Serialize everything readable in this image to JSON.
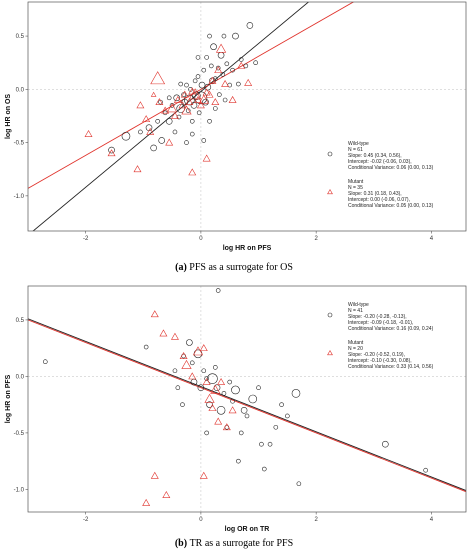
{
  "colors": {
    "wild": "#222222",
    "mutant": "#e0322b",
    "grid": "#cccccc",
    "frame": "#555555",
    "background": "#ffffff"
  },
  "chart_data": [
    {
      "type": "scatter",
      "title": "",
      "xlabel": "log HR on PFS",
      "ylabel": "log HR on OS",
      "xlim": [
        -3.0,
        4.6
      ],
      "ylim": [
        -1.33,
        0.82
      ],
      "xticks": [
        -2,
        0,
        2,
        4
      ],
      "yticks": [
        0.5,
        0.0,
        -0.5,
        -1.0
      ],
      "grid": false,
      "reference_lines": [
        0,
        0
      ],
      "legend_position": "right",
      "caption": {
        "letter": "(a)",
        "text": "PFS as a surrogate for OS"
      },
      "series": [
        {
          "name": "Wild-type",
          "marker": "circle",
          "legend": [
            "Wild-type",
            "N = 61",
            "Slope: 0.45 (0.34, 0.56),",
            "Intercept: -0.02 (-0.06, 0.03),",
            "Conditional Variance: 0.06 (0.00, 0.13)"
          ],
          "line": {
            "slope": 0.45,
            "intercept": -0.02
          },
          "points": [
            [
              -1.55,
              -0.57,
              3
            ],
            [
              -1.3,
              -0.44,
              4
            ],
            [
              -1.05,
              -0.4,
              2
            ],
            [
              -0.9,
              -0.36,
              3
            ],
            [
              -0.82,
              -0.55,
              3
            ],
            [
              -0.75,
              -0.3,
              2
            ],
            [
              -0.68,
              -0.48,
              3
            ],
            [
              -0.62,
              -0.22,
              2
            ],
            [
              -0.55,
              -0.3,
              3
            ],
            [
              -0.5,
              -0.15,
              2
            ],
            [
              -0.45,
              -0.4,
              2
            ],
            [
              -0.42,
              -0.08,
              3
            ],
            [
              -0.38,
              -0.26,
              2
            ],
            [
              -0.35,
              -0.18,
              4
            ],
            [
              -0.3,
              -0.05,
              2
            ],
            [
              -0.28,
              -0.12,
              3
            ],
            [
              -0.25,
              0.04,
              2
            ],
            [
              -0.22,
              -0.2,
              2
            ],
            [
              -0.2,
              -0.1,
              5
            ],
            [
              -0.18,
              0.0,
              2
            ],
            [
              -0.15,
              -0.3,
              2
            ],
            [
              -0.12,
              -0.15,
              3
            ],
            [
              -0.1,
              0.08,
              2
            ],
            [
              -0.08,
              -0.06,
              4
            ],
            [
              -0.05,
              0.12,
              2
            ],
            [
              -0.03,
              -0.22,
              2
            ],
            [
              0.0,
              -0.08,
              6
            ],
            [
              0.02,
              0.04,
              3
            ],
            [
              0.05,
              0.18,
              2
            ],
            [
              0.08,
              -0.12,
              3
            ],
            [
              0.1,
              0.3,
              2
            ],
            [
              0.12,
              0.02,
              3
            ],
            [
              0.15,
              -0.3,
              2
            ],
            [
              0.18,
              0.22,
              2
            ],
            [
              0.2,
              0.08,
              3
            ],
            [
              0.22,
              0.4,
              3
            ],
            [
              0.25,
              0.1,
              2
            ],
            [
              0.3,
              0.2,
              2
            ],
            [
              0.32,
              -0.05,
              2
            ],
            [
              0.35,
              0.32,
              3
            ],
            [
              0.38,
              0.14,
              2
            ],
            [
              0.4,
              0.5,
              2
            ],
            [
              0.45,
              0.24,
              2
            ],
            [
              0.5,
              0.04,
              2
            ],
            [
              0.55,
              0.18,
              2
            ],
            [
              0.6,
              0.5,
              3
            ],
            [
              0.7,
              0.28,
              2
            ],
            [
              0.78,
              0.22,
              2
            ],
            [
              0.85,
              0.6,
              3
            ],
            [
              0.95,
              0.25,
              2
            ],
            [
              -0.15,
              -0.42,
              2
            ],
            [
              0.25,
              -0.18,
              2
            ],
            [
              -0.35,
              0.05,
              2
            ],
            [
              0.05,
              -0.48,
              2
            ],
            [
              -0.55,
              -0.08,
              2
            ],
            [
              -0.7,
              -0.12,
              2
            ],
            [
              0.65,
              0.05,
              2
            ],
            [
              -0.25,
              -0.5,
              2
            ],
            [
              0.15,
              0.5,
              2
            ],
            [
              -0.05,
              0.3,
              2
            ],
            [
              0.42,
              -0.1,
              2
            ]
          ]
        },
        {
          "name": "Mutant",
          "marker": "triangle",
          "legend": [
            "Mutant",
            "N = 35",
            "Slope: 0.31 (0.18, 0.43),",
            "Intercept: 0.00 (-0.06, 0.07),",
            "Conditional Variance: 0.05 (0.00, 0.13)"
          ],
          "line": {
            "slope": 0.31,
            "intercept": 0.0
          },
          "points": [
            [
              -1.95,
              -0.42,
              3
            ],
            [
              -1.55,
              -0.6,
              3
            ],
            [
              -1.1,
              -0.75,
              3
            ],
            [
              -1.05,
              -0.15,
              3
            ],
            [
              -0.95,
              -0.28,
              3
            ],
            [
              -0.88,
              -0.4,
              3
            ],
            [
              -0.82,
              -0.05,
              2
            ],
            [
              -0.72,
              -0.12,
              3
            ],
            [
              -0.62,
              -0.2,
              3
            ],
            [
              -0.55,
              -0.5,
              3
            ],
            [
              -0.5,
              -0.18,
              4
            ],
            [
              -0.45,
              -0.25,
              3
            ],
            [
              -0.4,
              -0.1,
              3
            ],
            [
              -0.32,
              -0.15,
              3
            ],
            [
              -0.28,
              -0.05,
              3
            ],
            [
              -0.25,
              -0.2,
              4
            ],
            [
              -0.2,
              -0.12,
              3
            ],
            [
              -0.15,
              -0.02,
              3
            ],
            [
              -0.1,
              -0.05,
              5
            ],
            [
              -0.05,
              -0.1,
              3
            ],
            [
              0.0,
              -0.15,
              3
            ],
            [
              0.05,
              -0.1,
              4
            ],
            [
              0.1,
              -0.03,
              3
            ],
            [
              0.15,
              -0.05,
              3
            ],
            [
              0.2,
              0.08,
              3
            ],
            [
              0.25,
              -0.12,
              3
            ],
            [
              0.3,
              0.18,
              3
            ],
            [
              0.35,
              0.38,
              4
            ],
            [
              0.42,
              0.05,
              3
            ],
            [
              0.55,
              -0.1,
              3
            ],
            [
              0.7,
              0.22,
              3
            ],
            [
              0.82,
              0.06,
              3
            ],
            [
              -0.75,
              0.1,
              6
            ],
            [
              -0.15,
              -0.78,
              3
            ],
            [
              0.1,
              -0.65,
              3
            ]
          ]
        }
      ]
    },
    {
      "type": "scatter",
      "title": "",
      "xlabel": "log OR on TR",
      "ylabel": "log HR on PFS",
      "xlim": [
        -3.0,
        4.6
      ],
      "ylim": [
        -1.2,
        0.8
      ],
      "xticks": [
        -2,
        0,
        2,
        4
      ],
      "yticks": [
        0.5,
        0.0,
        -0.5,
        -1.0
      ],
      "grid": false,
      "reference_lines": [
        0,
        0
      ],
      "legend_position": "top-right",
      "caption": {
        "letter": "(b)",
        "text": "TR as a surrogate for PFS"
      },
      "series": [
        {
          "name": "Wild-type",
          "marker": "circle",
          "legend": [
            "Wild-type",
            "N = 41",
            "Slope: -0.20 (-0.28, -0.13),",
            "Intercept: -0.09 (-0.18, -0.01),",
            "Conditional Variance: 0.16 (0.09, 0.24)"
          ],
          "line": {
            "slope": -0.2,
            "intercept": -0.09
          },
          "points": [
            [
              -2.7,
              0.13,
              2
            ],
            [
              -0.95,
              0.26,
              2
            ],
            [
              -0.45,
              0.05,
              2
            ],
            [
              -0.4,
              -0.1,
              2
            ],
            [
              -0.32,
              -0.25,
              2
            ],
            [
              -0.2,
              0.3,
              3
            ],
            [
              -0.15,
              0.12,
              2
            ],
            [
              -0.12,
              -0.05,
              3
            ],
            [
              -0.05,
              0.2,
              4
            ],
            [
              0.0,
              -0.1,
              3
            ],
            [
              0.05,
              0.05,
              2
            ],
            [
              0.1,
              -0.02,
              2
            ],
            [
              0.15,
              -0.25,
              3
            ],
            [
              0.2,
              -0.02,
              5
            ],
            [
              0.25,
              0.08,
              2
            ],
            [
              0.28,
              -0.1,
              3
            ],
            [
              0.3,
              0.76,
              2
            ],
            [
              0.35,
              -0.3,
              4
            ],
            [
              0.4,
              -0.15,
              2
            ],
            [
              0.45,
              -0.45,
              2
            ],
            [
              0.5,
              -0.05,
              2
            ],
            [
              0.55,
              -0.22,
              2
            ],
            [
              0.6,
              -0.12,
              4
            ],
            [
              0.7,
              -0.5,
              2
            ],
            [
              0.75,
              -0.3,
              3
            ],
            [
              0.8,
              -0.35,
              2
            ],
            [
              0.9,
              -0.2,
              4
            ],
            [
              1.0,
              -0.1,
              2
            ],
            [
              1.1,
              -0.82,
              2
            ],
            [
              1.2,
              -0.6,
              2
            ],
            [
              1.3,
              -0.45,
              2
            ],
            [
              1.4,
              -0.25,
              2
            ],
            [
              1.5,
              -0.35,
              2
            ],
            [
              1.65,
              -0.15,
              4
            ],
            [
              1.7,
              -0.95,
              2
            ],
            [
              3.2,
              -0.6,
              3
            ],
            [
              3.9,
              -0.83,
              2
            ],
            [
              0.1,
              -0.5,
              2
            ],
            [
              -0.3,
              0.18,
              2
            ],
            [
              0.65,
              -0.75,
              2
            ],
            [
              1.05,
              -0.6,
              2
            ]
          ]
        },
        {
          "name": "Mutant",
          "marker": "triangle",
          "legend": [
            "Mutant",
            "N = 20",
            "Slope: -0.20 (-0.52, 0.19),",
            "Intercept: -0.10 (-0.30, 0.08),",
            "Conditional Variance: 0.33 (0.14, 0.56)"
          ],
          "line": {
            "slope": -0.2,
            "intercept": -0.1
          },
          "points": [
            [
              -0.95,
              -1.12,
              3
            ],
            [
              -0.8,
              -0.88,
              3
            ],
            [
              -0.6,
              -1.05,
              3
            ],
            [
              -0.8,
              0.55,
              3
            ],
            [
              -0.65,
              0.38,
              3
            ],
            [
              -0.45,
              0.35,
              3
            ],
            [
              -0.3,
              0.18,
              3
            ],
            [
              -0.25,
              0.1,
              4
            ],
            [
              -0.15,
              0.0,
              3
            ],
            [
              -0.05,
              0.22,
              4
            ],
            [
              0.05,
              0.25,
              3
            ],
            [
              0.1,
              -0.05,
              3
            ],
            [
              0.15,
              -0.2,
              4
            ],
            [
              0.2,
              -0.28,
              3
            ],
            [
              0.25,
              -0.12,
              4
            ],
            [
              0.3,
              -0.4,
              3
            ],
            [
              0.35,
              -0.05,
              3
            ],
            [
              0.45,
              -0.45,
              3
            ],
            [
              0.55,
              -0.3,
              3
            ],
            [
              0.05,
              -0.88,
              3
            ]
          ]
        }
      ]
    }
  ]
}
